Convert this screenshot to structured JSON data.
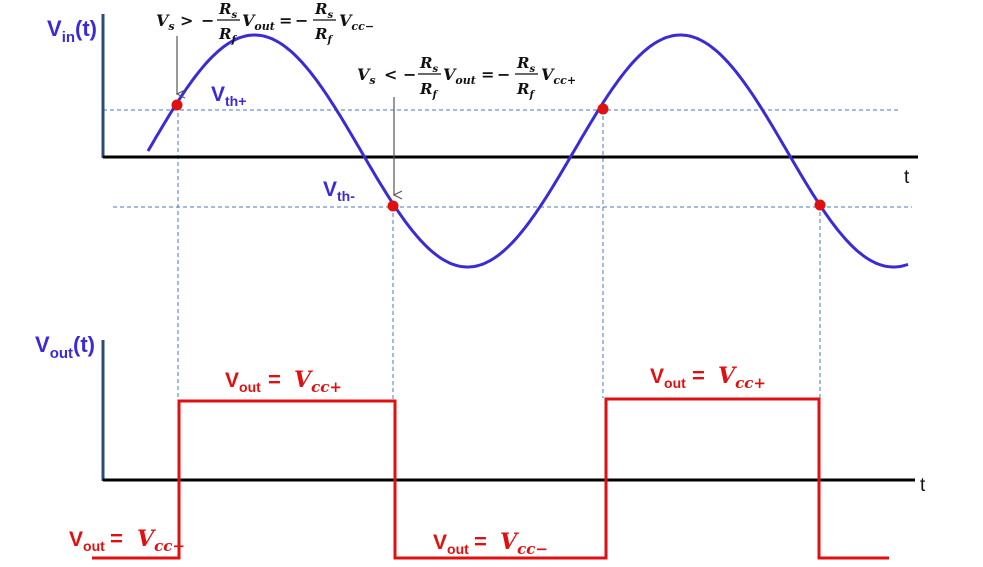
{
  "top_axis": {
    "label_main": "V",
    "label_sub": "in",
    "label_suffix": "(t)",
    "time_label": "t"
  },
  "bottom_axis": {
    "label_main": "V",
    "label_sub": "out",
    "label_suffix": "(t)",
    "time_label": "t"
  },
  "thresholds": {
    "upper": {
      "main": "V",
      "sub": "th+"
    },
    "lower": {
      "main": "V",
      "sub": "th-"
    }
  },
  "annotations": {
    "rising": {
      "vs": "V",
      "vs_sub": "s",
      "relation": ">",
      "minus1": "−",
      "rs": "R",
      "rs_sub": "s",
      "rf": "R",
      "rf_sub": "f",
      "vout": "V",
      "vout_sub": "out",
      "equals": "=",
      "minus2": "−",
      "rs2": "R",
      "rs2_sub": "s",
      "rf2": "R",
      "rf2_sub": "f",
      "vcc": "V",
      "vcc_sub": "cc−"
    },
    "falling": {
      "vs": "V",
      "vs_sub": "s",
      "relation": "<",
      "minus1": "−",
      "rs": "R",
      "rs_sub": "s",
      "rf": "R",
      "rf_sub": "f",
      "vout": "V",
      "vout_sub": "out",
      "equals": "=",
      "minus2": "−",
      "rs2": "R",
      "rs2_sub": "s",
      "rf2": "R",
      "rf2_sub": "f",
      "vcc": "V",
      "vcc_sub": "cc+"
    }
  },
  "output_levels": [
    {
      "main": "V",
      "sub": "out",
      "eq": "=",
      "val": "V",
      "val_sub": "cc−"
    },
    {
      "main": "V",
      "sub": "out",
      "eq": "=",
      "val": "V",
      "val_sub": "cc+"
    },
    {
      "main": "V",
      "sub": "out",
      "eq": "=",
      "val": "V",
      "val_sub": "cc−"
    },
    {
      "main": "V",
      "sub": "out",
      "eq": "=",
      "val": "V",
      "val_sub": "cc+"
    }
  ],
  "colors": {
    "sine": "#3a2bd6",
    "square": "#e01010",
    "axis": "#000000",
    "dashed": "#4a78c0",
    "dot": "#e01010"
  }
}
